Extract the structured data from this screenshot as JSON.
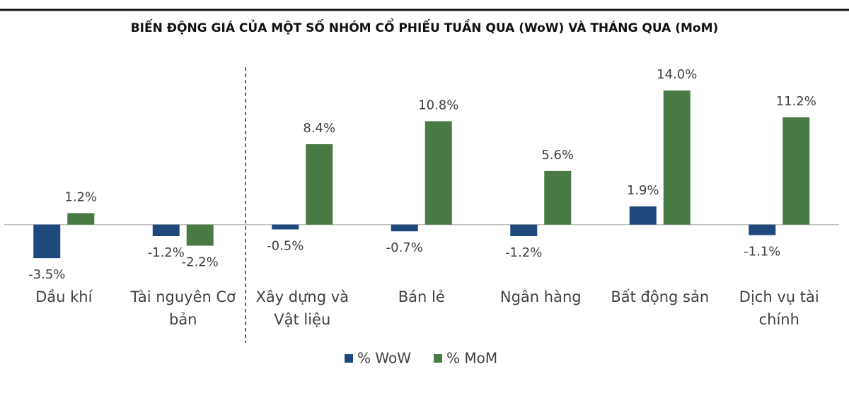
{
  "chart_data": {
    "type": "bar",
    "title": "BIẾN ĐỘNG GIÁ CỦA MỘT SỐ NHÓM CỔ PHIẾU TUẦN QUA (WoW) VÀ THÁNG QUA (MoM)",
    "categories": [
      "Dầu khí",
      "Tài nguyên Cơ bản",
      "Xây dựng và Vật liệu",
      "Bán lẻ",
      "Ngân hàng",
      "Bất động sản",
      "Dịch vụ tài chính"
    ],
    "series": [
      {
        "name": "% WoW",
        "color": "#1f497d",
        "values": [
          -3.5,
          -1.2,
          -0.5,
          -0.7,
          -1.2,
          1.9,
          -1.1
        ],
        "value_labels": [
          "-3.5%",
          "-1.2%",
          "-0.5%",
          "-0.7%",
          "-1.2%",
          "1.9%",
          "-1.1%"
        ]
      },
      {
        "name": "% MoM",
        "color": "#4a7a43",
        "values": [
          1.2,
          -2.2,
          8.4,
          10.8,
          5.6,
          14.0,
          11.2
        ],
        "value_labels": [
          "1.2%",
          "-2.2%",
          "8.4%",
          "10.8%",
          "5.6%",
          "14.0%",
          "11.2%"
        ]
      }
    ],
    "ylim": [
      -6,
      16
    ],
    "legend": "bottom"
  }
}
